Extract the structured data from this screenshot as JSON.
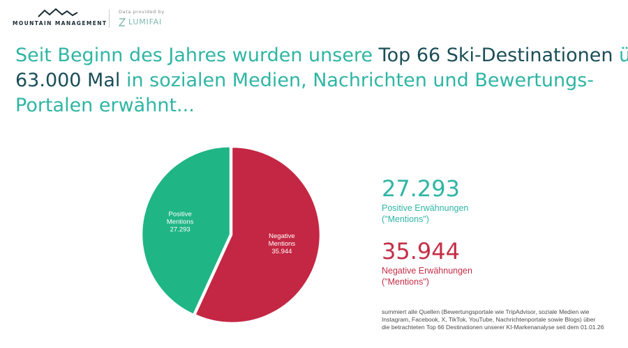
{
  "header": {
    "logo_text": "MOUNTAIN MANAGEMENT",
    "provider_label": "Data provided by",
    "provider_brand": "LUMIFAI"
  },
  "headline": {
    "line1_a": "Seit Beginn des Jahres wurden unsere ",
    "line1_b": "Top 66 Ski-Destinationen",
    "line1_c": " ü",
    "line2_a": "63.000 Mal",
    "line2_b": " in sozialen Medien, Nachrichten und Bewertungs-",
    "line3": "Portalen erwähnt..."
  },
  "chart_data": {
    "type": "pie",
    "slices": [
      {
        "label_line1": "Positive",
        "label_line2": "Mentions",
        "value_label": "27.293",
        "value": 27293,
        "color": "#20b585"
      },
      {
        "label_line1": "Negative",
        "label_line2": "Mentions",
        "value_label": "35.944",
        "value": 35944,
        "color": "#c42743"
      }
    ]
  },
  "stats": {
    "positive": {
      "value": "27.293",
      "label_line1": "Positive Erwähnungen",
      "label_line2": "(\"Mentions\")",
      "color": "#2fb5a4"
    },
    "negative": {
      "value": "35.944",
      "label_line1": "Negative Erwähnungen",
      "label_line2": "(\"Mentions\")",
      "color": "#c42e47"
    }
  },
  "footnote": {
    "line1": "summiert alle Quellen (Bewertungsportale wie TripAdvisor, soziale Medien wie",
    "line2": "Instagram, Facebook, X, TikTok, YouTube, Nachrichtenportale sowie Blogs) über",
    "line3": "die betrachteten Top 66 Destinationen unserer KI-Markenanalyse seit dem 01.01.26"
  }
}
